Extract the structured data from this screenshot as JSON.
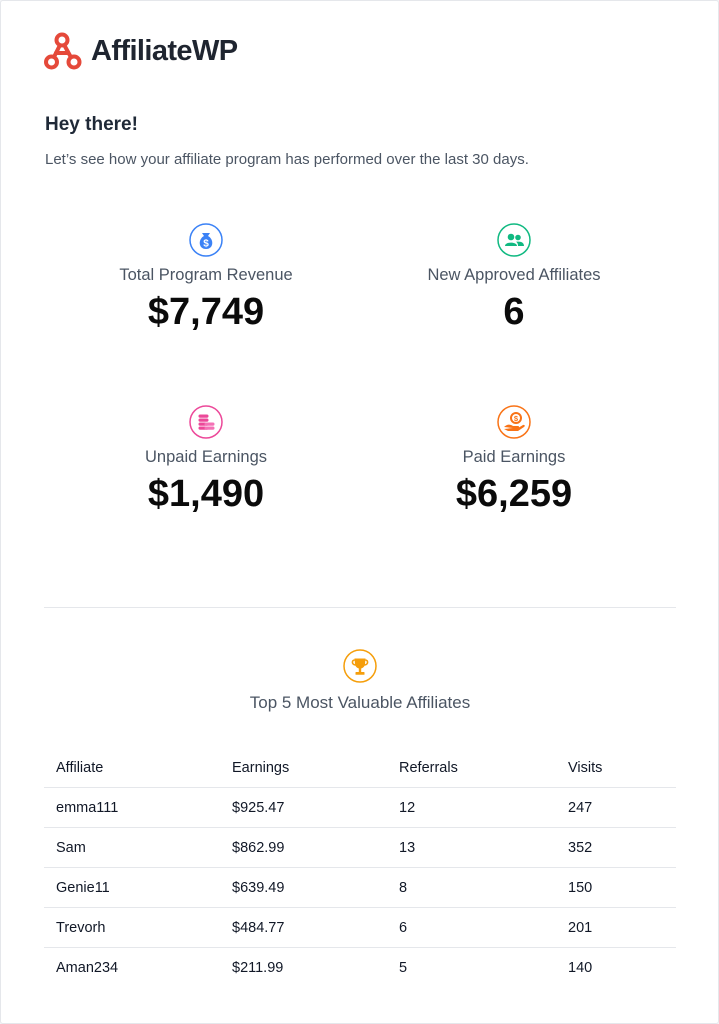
{
  "brand": {
    "name": "AffiliateWP",
    "logo_color": "#e5493a"
  },
  "greeting": "Hey there!",
  "intro": "Let’s see how your affiliate program has performed over the last 30 days.",
  "stats": {
    "revenue": {
      "icon": "money-bag-icon",
      "color": "#3b82f6",
      "label": "Total Program Revenue",
      "value": "$7,749"
    },
    "affiliates": {
      "icon": "users-icon",
      "color": "#10b981",
      "label": "New Approved Affiliates",
      "value": "6"
    },
    "unpaid": {
      "icon": "coins-icon",
      "color": "#ec4899",
      "label": "Unpaid Earnings",
      "value": "$1,490"
    },
    "paid": {
      "icon": "hand-coin-icon",
      "color": "#f97316",
      "label": "Paid Earnings",
      "value": "$6,259"
    }
  },
  "top_affiliates": {
    "icon": "trophy-icon",
    "color": "#f59e0b",
    "title": "Top 5 Most Valuable Affiliates",
    "columns": [
      "Affiliate",
      "Earnings",
      "Referrals",
      "Visits"
    ],
    "rows": [
      [
        "emma111",
        "$925.47",
        "12",
        "247"
      ],
      [
        "Sam",
        "$862.99",
        "13",
        "352"
      ],
      [
        "Genie11",
        "$639.49",
        "8",
        "150"
      ],
      [
        "Trevorh",
        "$484.77",
        "6",
        "201"
      ],
      [
        "Aman234",
        "$211.99",
        "5",
        "140"
      ]
    ]
  }
}
